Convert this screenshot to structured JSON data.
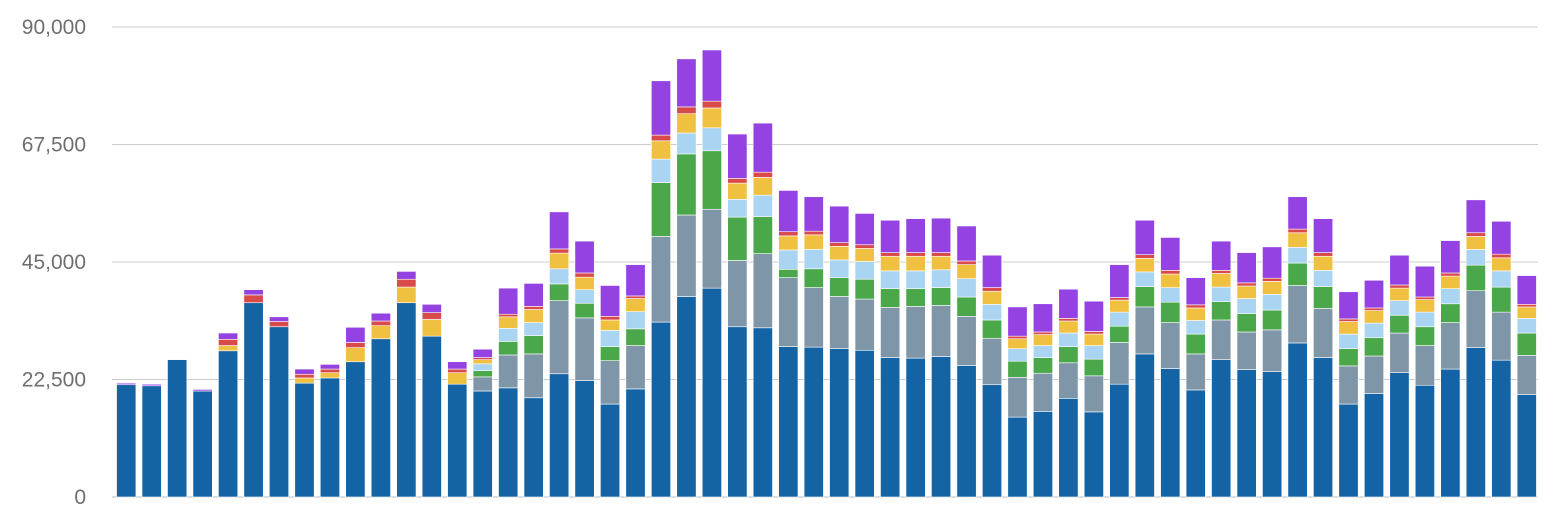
{
  "chart_data": {
    "type": "bar",
    "stacked": true,
    "title": "",
    "xlabel": "",
    "ylabel": "",
    "ylim": [
      0,
      90000
    ],
    "y_ticks": [
      0,
      22500,
      45000,
      67500,
      90000
    ],
    "y_tick_labels": [
      "0",
      "22,500",
      "45,000",
      "67,500",
      "90,000"
    ],
    "grid": true,
    "legend": "none",
    "colors": [
      "#1464a5",
      "#7f95a8",
      "#4aa84a",
      "#a9d4f2",
      "#f0c040",
      "#d94b4b",
      "#9542e3"
    ],
    "bar_count": 56,
    "series": [
      {
        "values": [
          21500,
          21300,
          26300,
          20300,
          28000,
          37200,
          32600,
          21800,
          22800,
          25900,
          30300,
          37200,
          30800,
          21600,
          20300,
          20900,
          19000,
          23600,
          22300,
          17800,
          20700,
          33500,
          38400,
          40000,
          32600,
          32400,
          28800,
          28700,
          28400,
          28100,
          26700,
          26600,
          26900,
          25200,
          21500,
          15300,
          16400,
          18900,
          16300,
          21600,
          27400,
          24600,
          20500,
          26300,
          24400,
          24000,
          29500,
          26700,
          17800,
          19800,
          23800,
          21400,
          24500,
          28600,
          26200,
          19600
        ]
      },
      {
        "values": [
          0,
          0,
          0,
          0,
          0,
          0,
          0,
          0,
          0,
          0,
          0,
          0,
          0,
          0,
          2700,
          6300,
          8400,
          14000,
          12000,
          8300,
          8300,
          16400,
          15600,
          15100,
          12700,
          14200,
          13200,
          11400,
          10000,
          9800,
          9600,
          9900,
          9800,
          9400,
          8900,
          7600,
          7300,
          6800,
          6900,
          8000,
          9000,
          8800,
          6900,
          7600,
          7200,
          8000,
          11000,
          9400,
          7300,
          7200,
          7600,
          7600,
          8900,
          10900,
          9200,
          7500
        ]
      },
      {
        "values": [
          0,
          0,
          0,
          0,
          0,
          0,
          0,
          0,
          0,
          0,
          0,
          0,
          0,
          0,
          1200,
          2600,
          3500,
          3200,
          2800,
          2700,
          3200,
          10300,
          11700,
          11200,
          8300,
          7100,
          1600,
          3600,
          3600,
          3800,
          3600,
          3400,
          3400,
          3700,
          3500,
          3100,
          3000,
          3100,
          3200,
          3100,
          3900,
          3900,
          3800,
          3500,
          3500,
          3800,
          4300,
          4200,
          3300,
          3500,
          3400,
          3600,
          3600,
          4900,
          4800,
          4300
        ]
      },
      {
        "values": [
          0,
          0,
          0,
          0,
          0,
          0,
          0,
          0,
          0,
          0,
          0,
          0,
          0,
          0,
          1300,
          2500,
          2500,
          2900,
          2600,
          3100,
          3300,
          4500,
          4000,
          4400,
          3400,
          4100,
          3700,
          3700,
          3400,
          3400,
          3400,
          3400,
          3400,
          3500,
          3000,
          2400,
          2300,
          2600,
          2600,
          2700,
          2800,
          2800,
          2600,
          2800,
          2900,
          3000,
          3000,
          3100,
          2800,
          2800,
          2800,
          2800,
          2900,
          3000,
          3100,
          2800
        ]
      },
      {
        "values": [
          0,
          0,
          0,
          0,
          1000,
          0,
          0,
          1000,
          1000,
          2700,
          2500,
          3000,
          3200,
          2200,
          800,
          2200,
          2500,
          3000,
          2400,
          2000,
          2500,
          3500,
          3700,
          3800,
          3100,
          3400,
          2700,
          2800,
          2600,
          2500,
          2800,
          2800,
          2600,
          2700,
          2500,
          1900,
          2100,
          2300,
          2200,
          2300,
          2600,
          2600,
          2400,
          2600,
          2400,
          2500,
          2800,
          2700,
          2400,
          2400,
          2400,
          2400,
          2400,
          2500,
          2500,
          2200
        ]
      },
      {
        "values": [
          0,
          0,
          0,
          0,
          1200,
          1500,
          1000,
          700,
          700,
          1000,
          900,
          1500,
          1300,
          700,
          400,
          500,
          600,
          800,
          800,
          700,
          500,
          1100,
          1300,
          1300,
          900,
          1000,
          800,
          700,
          700,
          700,
          700,
          700,
          700,
          700,
          700,
          500,
          500,
          500,
          500,
          500,
          700,
          700,
          600,
          600,
          600,
          600,
          700,
          700,
          500,
          500,
          600,
          500,
          600,
          700,
          700,
          500
        ]
      },
      {
        "values": [
          300,
          300,
          0,
          300,
          1200,
          1000,
          900,
          1000,
          900,
          2900,
          1500,
          1500,
          1600,
          1400,
          1600,
          5000,
          4400,
          7100,
          6100,
          5900,
          6000,
          10400,
          9200,
          9800,
          8500,
          9400,
          7900,
          6600,
          7000,
          6000,
          6200,
          6500,
          6600,
          6700,
          6200,
          5600,
          5400,
          5600,
          5800,
          6300,
          6600,
          6300,
          5200,
          5600,
          5800,
          6000,
          6200,
          6500,
          5200,
          5300,
          5700,
          5900,
          6200,
          6300,
          6300,
          5500
        ]
      }
    ]
  }
}
